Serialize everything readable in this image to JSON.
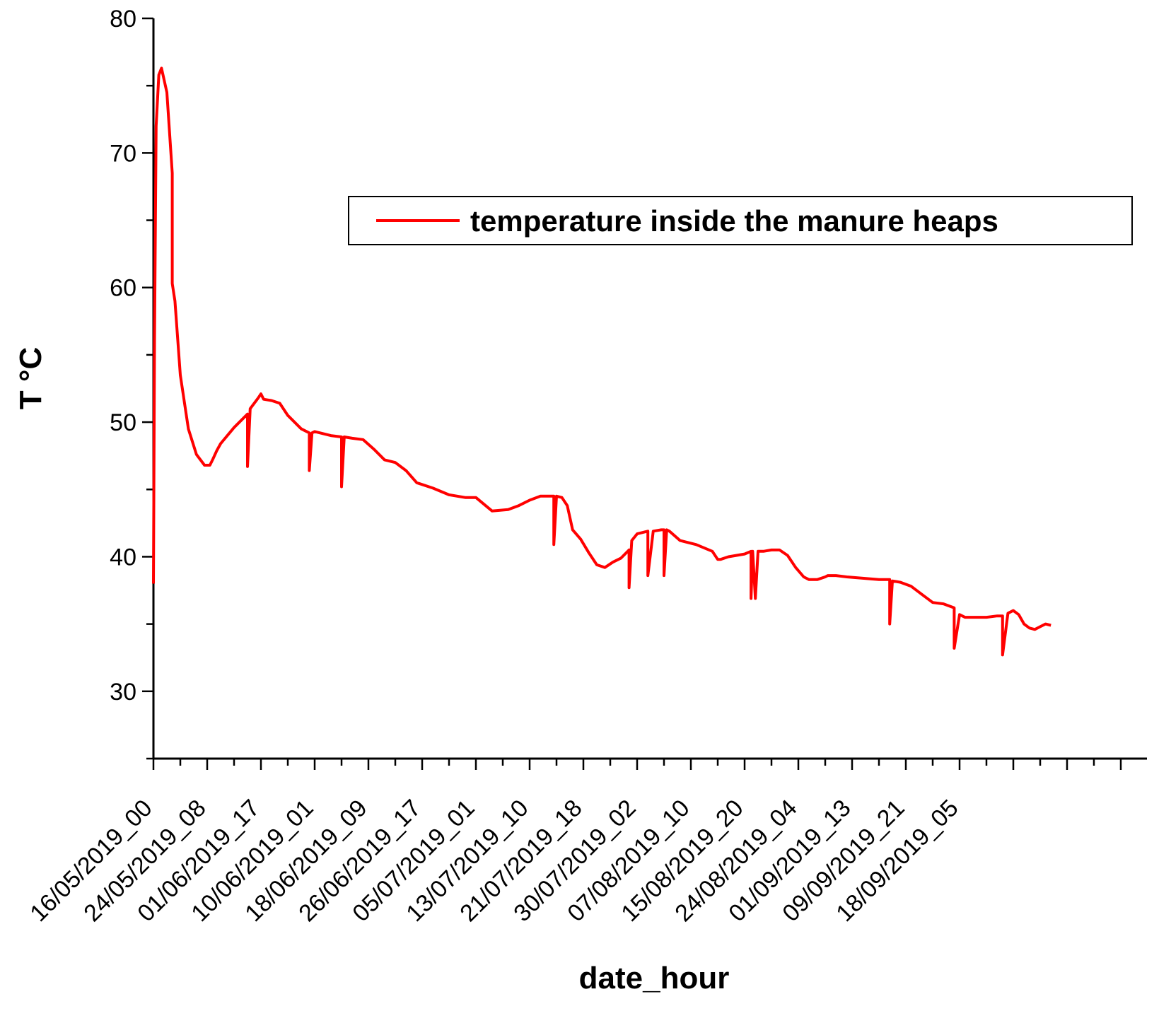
{
  "chart_data": {
    "type": "line",
    "xlabel": "date_hour",
    "ylabel": "T °C",
    "ylim": [
      25,
      80
    ],
    "yticks": [
      30,
      40,
      50,
      60,
      70,
      80
    ],
    "xticks": [
      "16/05/2019_00",
      "24/05/2019_08",
      "01/06/2019_17",
      "10/06/2019_01",
      "18/06/2019_09",
      "26/06/2019_17",
      "05/07/2019_01",
      "13/07/2019_10",
      "21/07/2019_18",
      "30/07/2019_02",
      "07/08/2019_10",
      "15/08/2019_20",
      "24/08/2019_04",
      "01/09/2019_13",
      "09/09/2019_21",
      "18/09/2019_05"
    ],
    "legend": {
      "position": "top-right",
      "entries": [
        "temperature inside the manure heaps"
      ]
    },
    "grid": false,
    "colors": {
      "series": "#ff0000"
    },
    "series": [
      {
        "name": "temperature inside the manure heaps",
        "x": [
          0,
          0.02,
          0.05,
          0.1,
          0.15,
          0.25,
          0.35,
          0.35,
          0.4,
          0.5,
          0.65,
          0.8,
          0.95,
          1.05,
          1.1,
          1.18,
          1.25,
          1.5,
          1.75,
          1.75,
          1.8,
          1.95,
          2.0,
          2.0,
          2.05,
          2.2,
          2.35,
          2.5,
          2.75,
          2.9,
          2.9,
          2.95,
          3.0,
          3.3,
          3.5,
          3.5,
          3.55,
          3.7,
          3.9,
          4.1,
          4.3,
          4.5,
          4.7,
          4.9,
          5.2,
          5.5,
          5.8,
          6.0,
          6.3,
          6.6,
          6.8,
          7.0,
          7.2,
          7.45,
          7.45,
          7.5,
          7.6,
          7.7,
          7.8,
          7.95,
          8.1,
          8.25,
          8.4,
          8.55,
          8.7,
          8.85,
          8.85,
          8.9,
          9.0,
          9.2,
          9.2,
          9.3,
          9.45,
          9.5,
          9.5,
          9.55,
          9.6,
          9.8,
          10.1,
          10.4,
          10.5,
          10.5,
          10.55,
          10.7,
          11.0,
          11.12,
          11.12,
          11.15,
          11.2,
          11.25,
          11.35,
          11.5,
          11.65,
          11.8,
          11.95,
          12.1,
          12.2,
          12.35,
          12.5,
          12.55,
          12.7,
          12.9,
          13.2,
          13.5,
          13.7,
          13.7,
          13.75,
          13.9,
          14.1,
          14.3,
          14.5,
          14.7,
          14.9,
          14.9,
          15.0,
          15.1,
          15.3,
          15.5,
          15.7,
          15.8,
          15.8,
          15.9,
          16.0,
          16.1,
          16.2,
          16.3,
          16.4,
          16.5,
          16.6,
          16.7
        ],
        "y": [
          38,
          56,
          72,
          75.8,
          76.3,
          74.5,
          68.5,
          60.3,
          59,
          53.5,
          49.5,
          47.6,
          46.8,
          46.8,
          47.2,
          47.9,
          48.4,
          49.6,
          50.6,
          46.7,
          51,
          51.8,
          52.1,
          52.1,
          51.7,
          51.6,
          51.4,
          50.5,
          49.5,
          49.2,
          46.4,
          49.2,
          49.3,
          49.0,
          48.9,
          45.2,
          48.9,
          48.8,
          48.7,
          48.0,
          47.2,
          47.0,
          46.4,
          45.5,
          45.1,
          44.6,
          44.4,
          44.4,
          43.4,
          43.5,
          43.8,
          44.2,
          44.5,
          44.5,
          40.9,
          44.5,
          44.4,
          43.8,
          42.0,
          41.3,
          40.3,
          39.4,
          39.2,
          39.6,
          39.9,
          40.5,
          37.7,
          41.2,
          41.7,
          41.9,
          38.6,
          41.9,
          42.0,
          42.0,
          38.6,
          42.0,
          41.9,
          41.2,
          40.9,
          40.4,
          39.8,
          39.8,
          39.8,
          40.0,
          40.2,
          40.4,
          36.9,
          40.4,
          36.9,
          40.4,
          40.4,
          40.5,
          40.5,
          40.1,
          39.2,
          38.5,
          38.3,
          38.3,
          38.5,
          38.6,
          38.6,
          38.5,
          38.4,
          38.3,
          38.3,
          35.0,
          38.2,
          38.1,
          37.8,
          37.2,
          36.6,
          36.5,
          36.2,
          33.2,
          35.7,
          35.5,
          35.5,
          35.5,
          35.6,
          35.6,
          32.7,
          35.8,
          36.0,
          35.7,
          35.0,
          34.7,
          34.6,
          34.8,
          35.0,
          34.9
        ]
      }
    ]
  }
}
